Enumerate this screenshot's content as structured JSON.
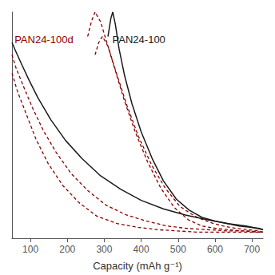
{
  "chart_data": {
    "type": "line",
    "xlabel": "Capacity (mAh g⁻¹)",
    "xlim": [
      50,
      730
    ],
    "ylim": [
      0.95,
      2.8
    ],
    "xticks": [
      100,
      200,
      300,
      400,
      500,
      600,
      700
    ],
    "grid": false,
    "tick_labels": "x",
    "series": [
      {
        "color": "#1a1a1a",
        "line_style": "solid",
        "x": [
          50,
          60,
          75,
          95,
          120,
          155,
          195,
          240,
          290,
          345,
          400,
          460,
          520,
          580,
          635,
          685,
          715,
          730
        ],
        "values": [
          2.55,
          2.48,
          2.38,
          2.25,
          2.1,
          1.92,
          1.75,
          1.6,
          1.46,
          1.35,
          1.26,
          1.19,
          1.14,
          1.1,
          1.07,
          1.05,
          1.03,
          1.02
        ]
      },
      {
        "color": "#1a1a1a",
        "line_style": "solid",
        "x": [
          310,
          318,
          323,
          330,
          340,
          355,
          375,
          400,
          430,
          460,
          495,
          530,
          565,
          600,
          635,
          665,
          695,
          720,
          730
        ],
        "values": [
          2.6,
          2.75,
          2.8,
          2.7,
          2.5,
          2.28,
          2.05,
          1.82,
          1.6,
          1.42,
          1.27,
          1.18,
          1.12,
          1.09,
          1.07,
          1.05,
          1.04,
          1.03,
          1.02
        ]
      },
      {
        "color": "#8b0000",
        "line_style": "dashed",
        "x": [
          50,
          60,
          80,
          105,
          135,
          170,
          210,
          255,
          305,
          360,
          415,
          470,
          525,
          580,
          630,
          675,
          710,
          730
        ],
        "values": [
          2.45,
          2.35,
          2.2,
          2.02,
          1.83,
          1.65,
          1.48,
          1.34,
          1.22,
          1.14,
          1.09,
          1.05,
          1.03,
          1.02,
          1.01,
          1.01,
          1.0,
          1.0
        ]
      },
      {
        "color": "#8b0000",
        "line_style": "dashed",
        "x": [
          50,
          65,
          88,
          115,
          148,
          188,
          232,
          280,
          335,
          390,
          445,
          498,
          550,
          600,
          645,
          685,
          715,
          730
        ],
        "values": [
          2.3,
          2.15,
          1.97,
          1.76,
          1.56,
          1.38,
          1.24,
          1.13,
          1.07,
          1.04,
          1.02,
          1.01,
          1.0,
          1.0,
          1.0,
          1.0,
          1.0,
          1.0
        ]
      },
      {
        "color": "#8b0000",
        "line_style": "dashed",
        "x": [
          255,
          265,
          275,
          290,
          310,
          335,
          362,
          393,
          428,
          465,
          505,
          545,
          585,
          622,
          658,
          690,
          718,
          730
        ],
        "values": [
          2.6,
          2.72,
          2.8,
          2.72,
          2.52,
          2.28,
          2.03,
          1.78,
          1.55,
          1.36,
          1.21,
          1.13,
          1.08,
          1.05,
          1.03,
          1.02,
          1.01,
          1.0
        ]
      },
      {
        "color": "#8b0000",
        "line_style": "dashed",
        "x": [
          275,
          285,
          295,
          310,
          330,
          355,
          385,
          418,
          453,
          490,
          528,
          565,
          602,
          638,
          670,
          698,
          722,
          730
        ],
        "values": [
          2.45,
          2.55,
          2.6,
          2.52,
          2.32,
          2.07,
          1.81,
          1.57,
          1.36,
          1.2,
          1.1,
          1.05,
          1.03,
          1.02,
          1.01,
          1.01,
          1.0,
          1.0
        ]
      }
    ],
    "annotations": [
      {
        "text": "PAN24-100d",
        "color": "#8b0000"
      },
      {
        "text": "PAN24-100",
        "color": "#1a1a1a"
      }
    ]
  }
}
